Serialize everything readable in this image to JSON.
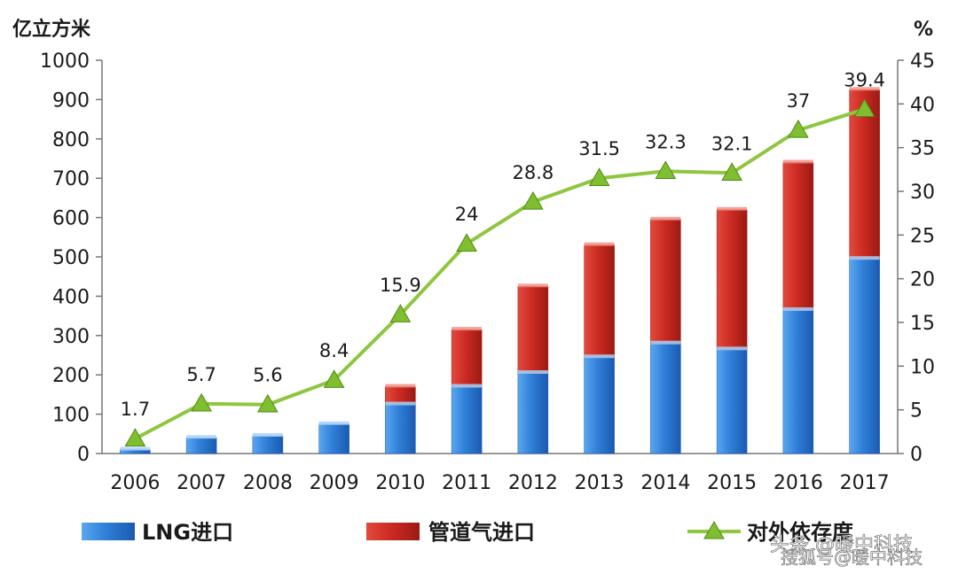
{
  "chart_data": {
    "type": "bar",
    "stacked": true,
    "categories": [
      "2006",
      "2007",
      "2008",
      "2009",
      "2010",
      "2011",
      "2012",
      "2013",
      "2014",
      "2015",
      "2016",
      "2017"
    ],
    "series": [
      {
        "name": "LNG进口",
        "type": "bar",
        "axis": "left",
        "color": "#2f7fd8",
        "values": [
          10,
          40,
          45,
          75,
          125,
          170,
          205,
          245,
          280,
          265,
          365,
          495
        ]
      },
      {
        "name": "管道气进口",
        "type": "bar",
        "axis": "left",
        "color": "#cc2b22",
        "values": [
          0,
          0,
          0,
          0,
          45,
          145,
          220,
          285,
          315,
          355,
          375,
          430
        ]
      },
      {
        "name": "对外依存度",
        "type": "line",
        "axis": "right",
        "color": "#8ec63f",
        "values": [
          1.7,
          5.7,
          5.6,
          8.4,
          15.9,
          24,
          28.8,
          31.5,
          32.3,
          32.1,
          37,
          39.4
        ],
        "labels": [
          "1.7",
          "5.7",
          "5.6",
          "8.4",
          "15.9",
          "24",
          "28.8",
          "31.5",
          "32.3",
          "32.1",
          "37",
          "39.4"
        ]
      }
    ],
    "y_left": {
      "unit": "亿立方米",
      "range": [
        0,
        1000
      ],
      "ticks": [
        "0",
        "100",
        "200",
        "300",
        "400",
        "500",
        "600",
        "700",
        "800",
        "900",
        "1000"
      ]
    },
    "y_right": {
      "unit": "%",
      "range": [
        0,
        45
      ],
      "ticks": [
        "0",
        "5",
        "10",
        "15",
        "20",
        "25",
        "30",
        "35",
        "40",
        "45"
      ]
    },
    "legend_position": "bottom",
    "grid": false
  },
  "watermark": "头条 @暖中科技",
  "watermark_sub": "搜狐号@暖中科技"
}
